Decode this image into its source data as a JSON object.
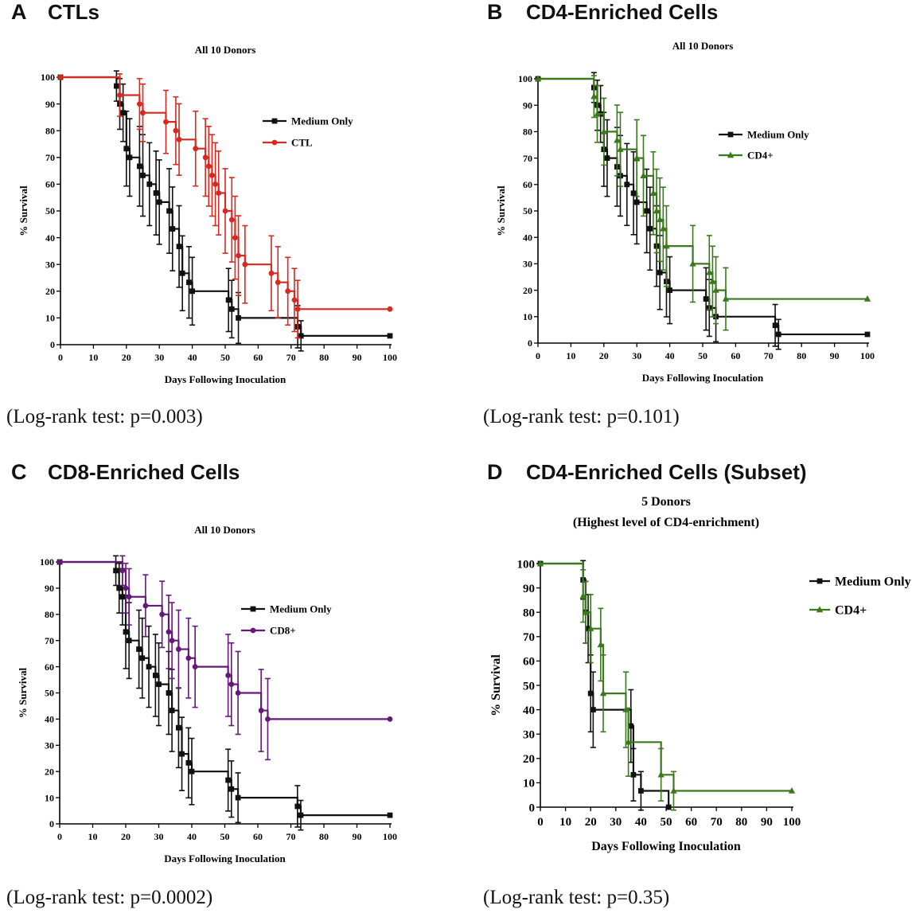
{
  "colors": {
    "medium": "#111111",
    "ctl": "#d42a22",
    "cd4": "#3b7a1a",
    "cd8": "#64197a"
  },
  "panels": [
    {
      "letter": "A",
      "title": "CTLs",
      "logrank": "(Log-rank test: p=0.003)"
    },
    {
      "letter": "B",
      "title": "CD4-Enriched Cells",
      "logrank": "(Log-rank test: p=0.101)"
    },
    {
      "letter": "C",
      "title": "CD8-Enriched Cells",
      "logrank": "(Log-rank test: p=0.0002)"
    },
    {
      "letter": "D",
      "title": "CD4-Enriched Cells (Subset)",
      "logrank": "(Log-rank test: p=0.35)"
    }
  ],
  "chart_data": [
    {
      "type": "line",
      "title": "All 10 Donors",
      "xlabel": "Days Following Inoculation",
      "ylabel": "% Survival",
      "xlim": [
        0,
        100
      ],
      "ylim": [
        0,
        100
      ],
      "xticks": [
        0,
        10,
        20,
        30,
        40,
        50,
        60,
        70,
        80,
        90,
        100
      ],
      "yticks": [
        0,
        10,
        20,
        30,
        40,
        50,
        60,
        70,
        80,
        90,
        100
      ],
      "legend_position": "upper-right",
      "series": [
        {
          "name": "Medium Only",
          "color": "#111111",
          "marker": "square",
          "x": [
            0,
            17,
            18,
            19,
            20,
            21,
            24,
            25,
            27,
            29,
            30,
            33,
            34,
            36,
            37,
            39,
            40,
            51,
            52,
            54,
            72,
            73,
            100
          ],
          "y": [
            100,
            96.7,
            90,
            86.7,
            73.3,
            70,
            66.7,
            63.3,
            60,
            56.7,
            53.3,
            50,
            43.3,
            36.7,
            26.7,
            23.3,
            20,
            16.7,
            13.3,
            10,
            6.7,
            3.3,
            3.3
          ]
        },
        {
          "name": "CTL",
          "color": "#d42a22",
          "marker": "circle",
          "x": [
            0,
            18,
            24,
            25,
            32,
            35,
            36,
            41,
            44,
            45,
            46,
            47,
            48,
            50,
            52,
            53,
            54,
            56,
            64,
            66,
            69,
            71,
            72,
            100
          ],
          "y": [
            100,
            93.3,
            90,
            86.7,
            83.3,
            80,
            76.7,
            73.3,
            70,
            66.7,
            63.3,
            60,
            56.7,
            50,
            46.7,
            40,
            33.3,
            30,
            26.7,
            23.3,
            20,
            16.7,
            13.3,
            13.3
          ]
        }
      ]
    },
    {
      "type": "line",
      "title": "All 10 Donors",
      "xlabel": "Days Following Inoculation",
      "ylabel": "% Survival",
      "xlim": [
        0,
        100
      ],
      "ylim": [
        0,
        100
      ],
      "xticks": [
        0,
        10,
        20,
        30,
        40,
        50,
        60,
        70,
        80,
        90,
        100
      ],
      "yticks": [
        0,
        10,
        20,
        30,
        40,
        50,
        60,
        70,
        80,
        90,
        100
      ],
      "legend_position": "upper-right",
      "series": [
        {
          "name": "Medium Only",
          "color": "#111111",
          "marker": "square",
          "x": [
            0,
            17,
            18,
            19,
            20,
            21,
            24,
            25,
            27,
            29,
            30,
            33,
            34,
            36,
            37,
            39,
            40,
            51,
            52,
            54,
            72,
            73,
            100
          ],
          "y": [
            100,
            96.7,
            90,
            86.7,
            73.3,
            70,
            66.7,
            63.3,
            60,
            56.7,
            53.3,
            50,
            43.3,
            36.7,
            26.7,
            23.3,
            20,
            16.7,
            13.3,
            10,
            6.7,
            3.3,
            3.3
          ]
        },
        {
          "name": "CD4+",
          "color": "#3b7a1a",
          "marker": "triangle",
          "x": [
            0,
            17,
            18,
            20,
            24,
            25,
            30,
            32,
            35,
            36,
            37,
            38,
            39,
            47,
            52,
            53,
            54,
            57,
            100
          ],
          "y": [
            100,
            93.3,
            86.7,
            80,
            76.7,
            73.3,
            70,
            63.3,
            56.7,
            50,
            46.7,
            43.3,
            36.7,
            30,
            26.7,
            23.3,
            20,
            16.7,
            16.7
          ]
        }
      ]
    },
    {
      "type": "line",
      "title": "All 10 Donors",
      "xlabel": "Days Following Inoculation",
      "ylabel": "% Survival",
      "xlim": [
        0,
        100
      ],
      "ylim": [
        0,
        100
      ],
      "xticks": [
        0,
        10,
        20,
        30,
        40,
        50,
        60,
        70,
        80,
        90,
        100
      ],
      "yticks": [
        0,
        10,
        20,
        30,
        40,
        50,
        60,
        70,
        80,
        90,
        100
      ],
      "legend_position": "upper-right",
      "series": [
        {
          "name": "Medium Only",
          "color": "#111111",
          "marker": "square",
          "x": [
            0,
            17,
            18,
            19,
            20,
            21,
            24,
            25,
            27,
            29,
            30,
            33,
            34,
            36,
            37,
            39,
            40,
            51,
            52,
            54,
            72,
            73,
            100
          ],
          "y": [
            100,
            96.7,
            90,
            86.7,
            73.3,
            70,
            66.7,
            63.3,
            60,
            56.7,
            53.3,
            50,
            43.3,
            36.7,
            26.7,
            23.3,
            20,
            16.7,
            13.3,
            10,
            6.7,
            3.3,
            3.3
          ]
        },
        {
          "name": "CD8+",
          "color": "#64197a",
          "marker": "circle",
          "x": [
            0,
            19,
            20,
            21,
            26,
            31,
            33,
            34,
            36,
            39,
            41,
            51,
            52,
            54,
            61,
            63,
            100
          ],
          "y": [
            100,
            96.7,
            90,
            86.7,
            83.3,
            80,
            73.3,
            70,
            66.7,
            63.3,
            60,
            56.7,
            53.3,
            50,
            43.3,
            40,
            40
          ]
        }
      ]
    },
    {
      "type": "line",
      "title": "5 Donors",
      "subtitle": "(Highest level of CD4-enrichment)",
      "xlabel": "Days Following Inoculation",
      "ylabel": "% Survival",
      "xlim": [
        0,
        100
      ],
      "ylim": [
        0,
        100
      ],
      "xticks": [
        0,
        10,
        20,
        30,
        40,
        50,
        60,
        70,
        80,
        90,
        100
      ],
      "yticks": [
        0,
        10,
        20,
        30,
        40,
        50,
        60,
        70,
        80,
        90,
        100
      ],
      "legend_position": "outside-right",
      "series": [
        {
          "name": "Medium Only",
          "color": "#111111",
          "marker": "square",
          "x": [
            0,
            17,
            18,
            19,
            20,
            21,
            36,
            37,
            40,
            51
          ],
          "y": [
            100,
            93.3,
            80,
            73.3,
            46.7,
            40,
            33.3,
            13.3,
            6.7,
            0
          ]
        },
        {
          "name": "CD4+",
          "color": "#3b7a1a",
          "marker": "triangle",
          "x": [
            0,
            17,
            18,
            20,
            24,
            25,
            34,
            35,
            48,
            53,
            100
          ],
          "y": [
            100,
            86.7,
            80,
            73.3,
            66.7,
            46.7,
            40,
            26.7,
            13.3,
            6.7,
            6.7
          ]
        }
      ]
    }
  ]
}
